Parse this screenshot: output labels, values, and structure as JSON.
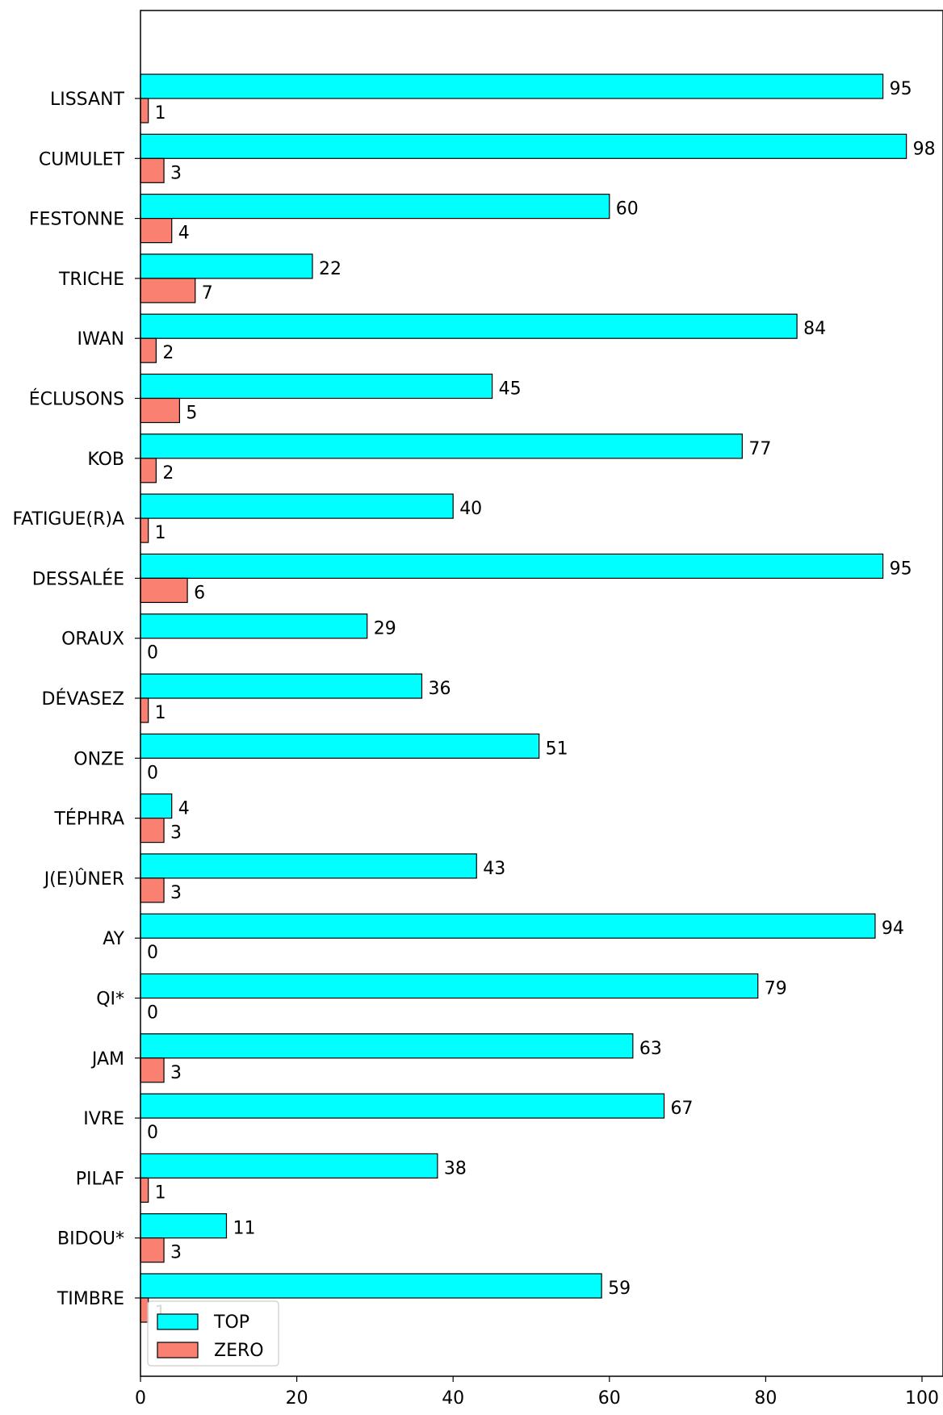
{
  "chart_data": {
    "type": "bar",
    "orientation": "horizontal",
    "categories": [
      "LISSANT",
      "CUMULET",
      "FESTONNE",
      "TRICHE",
      "IWAN",
      "ÉCLUSONS",
      "KOB",
      "FATIGUE(R)A",
      "DESSALÉE",
      "ORAUX",
      "DÉVASEZ",
      "ONZE",
      "TÉPHRA",
      "J(E)ÛNER",
      "AY",
      "QI*",
      "JAM",
      "IVRE",
      "PILAF",
      "BIDOU*",
      "TIMBRE"
    ],
    "series": [
      {
        "name": "TOP",
        "color": "#00ffff",
        "values": [
          95,
          98,
          60,
          22,
          84,
          45,
          77,
          40,
          95,
          29,
          36,
          51,
          4,
          43,
          94,
          79,
          63,
          67,
          38,
          11,
          59
        ]
      },
      {
        "name": "ZERO",
        "color": "#fa8072",
        "values": [
          1,
          3,
          4,
          7,
          2,
          5,
          2,
          1,
          6,
          0,
          1,
          0,
          3,
          3,
          0,
          0,
          3,
          0,
          1,
          3,
          1
        ]
      }
    ],
    "xlim": [
      0,
      100
    ],
    "xticks": [
      0,
      20,
      40,
      60,
      80,
      100
    ],
    "legend_position": "bottom-left",
    "grid": false
  }
}
